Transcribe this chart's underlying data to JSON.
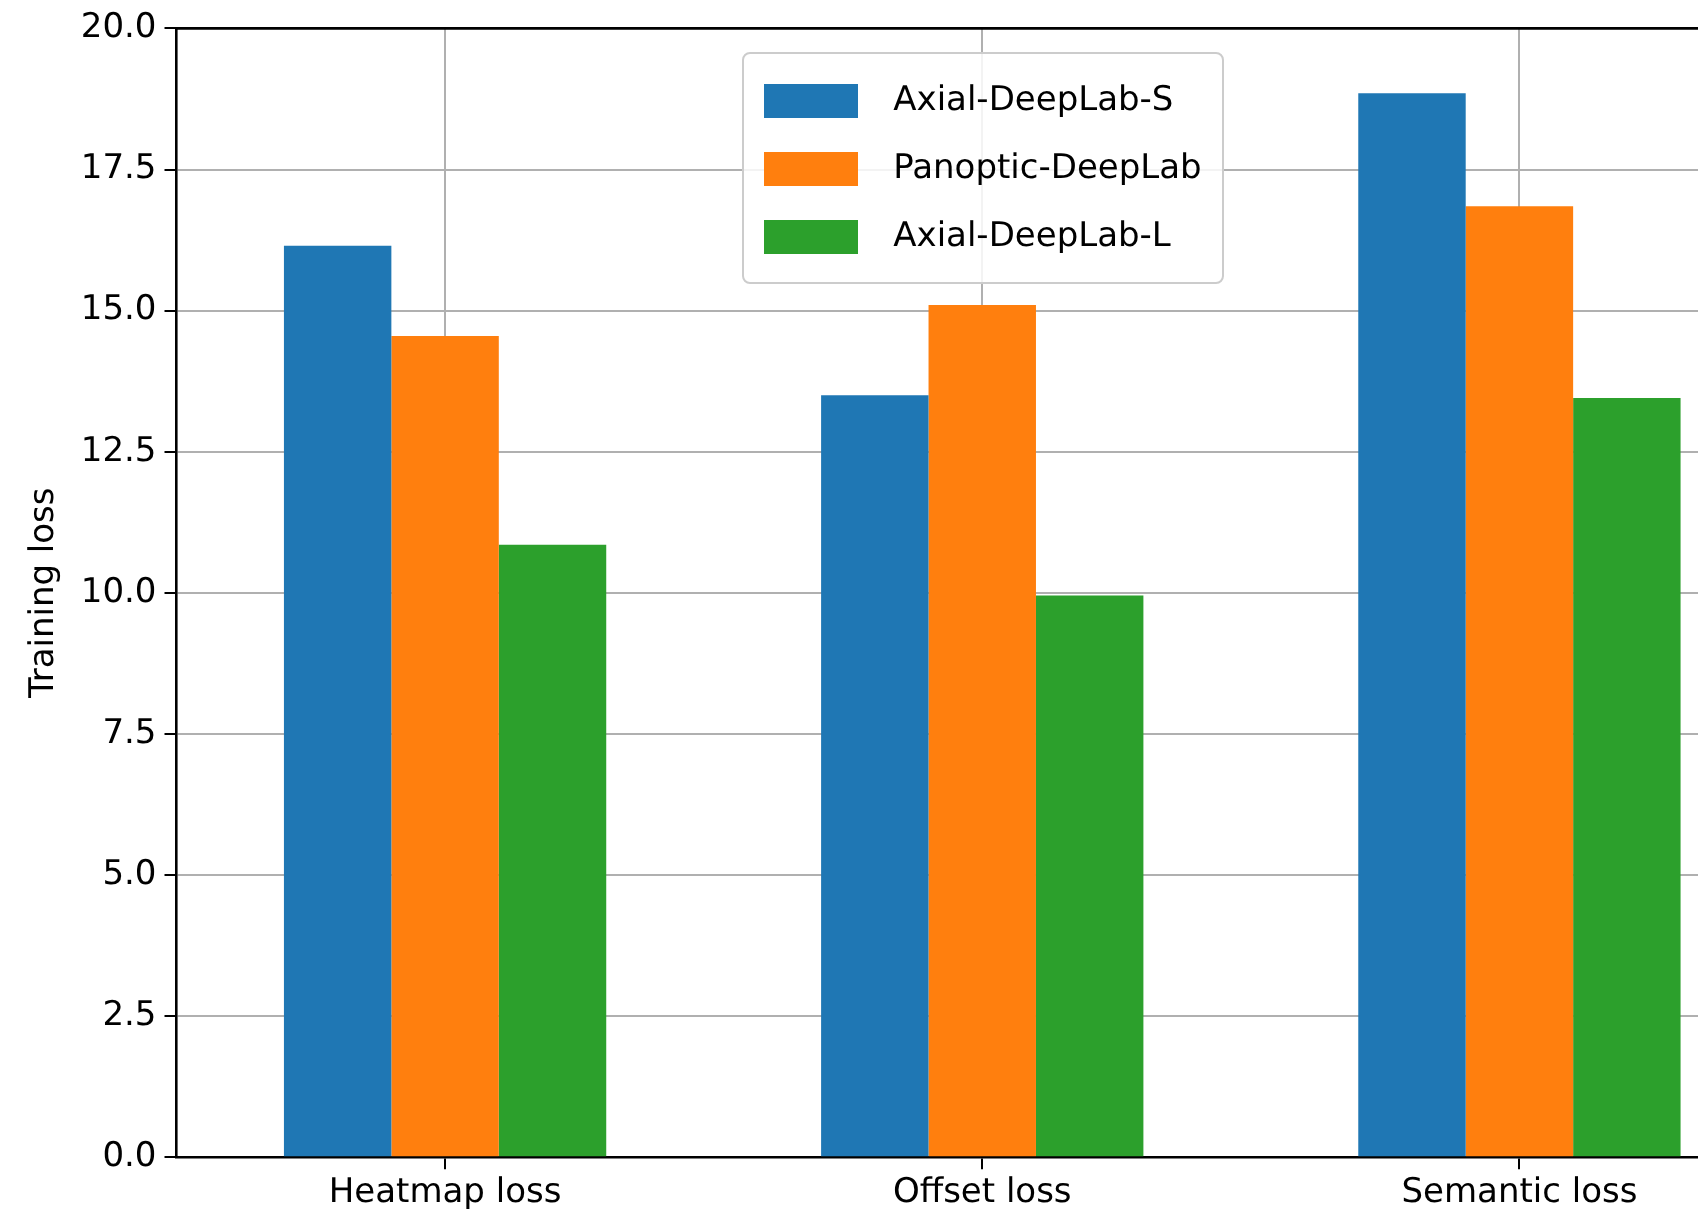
{
  "chart_data": {
    "type": "bar",
    "ylabel": "Training loss",
    "categories": [
      "Heatmap loss",
      "Offset loss",
      "Semantic loss"
    ],
    "series": [
      {
        "name": "Axial-DeepLab-S",
        "color": "#1f77b4",
        "values": [
          16.15,
          13.5,
          18.85
        ]
      },
      {
        "name": "Panoptic-DeepLab",
        "color": "#ff7f0e",
        "values": [
          14.55,
          15.1,
          16.85
        ]
      },
      {
        "name": "Axial-DeepLab-L",
        "color": "#2ca02c",
        "values": [
          10.85,
          9.95,
          13.45
        ]
      }
    ],
    "ylim": [
      0,
      20
    ],
    "yticks": [
      {
        "value": 0,
        "label": "0.0"
      },
      {
        "value": 2.5,
        "label": "2.5"
      },
      {
        "value": 5,
        "label": "5.0"
      },
      {
        "value": 7.5,
        "label": "7.5"
      },
      {
        "value": 10,
        "label": "10.0"
      },
      {
        "value": 12.5,
        "label": "12.5"
      },
      {
        "value": 15,
        "label": "15.0"
      },
      {
        "value": 17.5,
        "label": "17.5"
      },
      {
        "value": 20,
        "label": "20.0"
      }
    ],
    "grid": true,
    "legend": "top"
  }
}
